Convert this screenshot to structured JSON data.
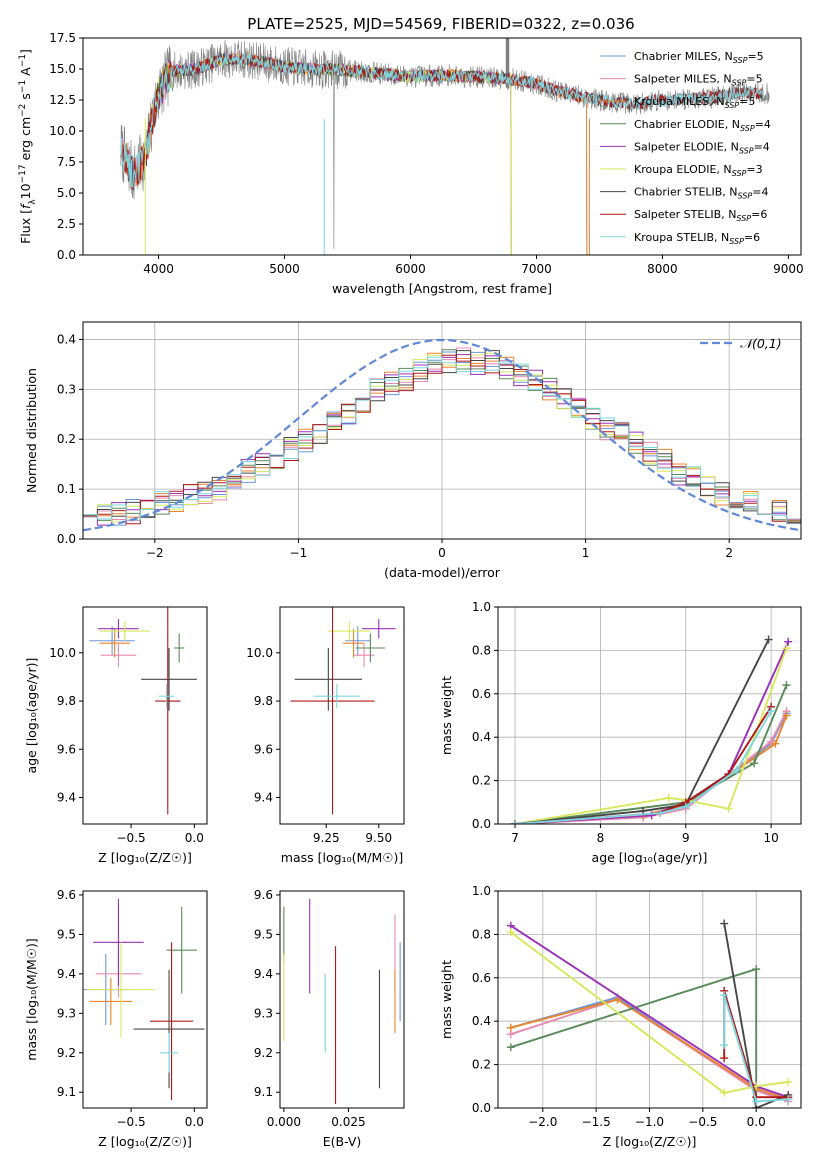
{
  "figure_title": "PLATE=2525, MJD=54569, FIBERID=0322, z=0.036",
  "colors": {
    "Chabrier MILES": "#6f96d8",
    "Salpeter MILES": "#e889b0",
    "Kroupa MILES": "#e8862d",
    "Chabrier ELODIE": "#5a8a5a",
    "Salpeter ELODIE": "#9b30b8",
    "Kroupa ELODIE": "#d7e85a",
    "Chabrier STELIB": "#474747",
    "Salpeter STELIB": "#b01818",
    "Kroupa STELIB": "#7fd6e0",
    "observed": "#808080",
    "normal": "#5f88d6"
  },
  "chart_data": [
    {
      "id": "spectrum",
      "type": "line",
      "xlabel": "wavelength [Angstrom, rest frame]",
      "ylabel_prefix": "Flux [",
      "ylabel_units": "f",
      "ylabel_sub": "λ",
      "ylabel_mid": "10",
      "ylabel_exp1": "−17",
      "ylabel_mid2": " erg cm",
      "ylabel_exp2": "−2",
      "ylabel_mid3": " s",
      "ylabel_exp3": "−1",
      "ylabel_mid4": " A",
      "ylabel_exp4": "−1",
      "ylabel_end": "]",
      "xlim": [
        3400,
        9100
      ],
      "ylim": [
        0,
        17.5
      ],
      "xticks": [
        4000,
        5000,
        6000,
        7000,
        8000,
        9000
      ],
      "yticks": [
        0.0,
        2.5,
        5.0,
        7.5,
        10.0,
        12.5,
        15.0,
        17.5
      ],
      "continuum": [
        [
          3700,
          8.5
        ],
        [
          3800,
          6.5
        ],
        [
          3900,
          8.0
        ],
        [
          3950,
          11.0
        ],
        [
          4000,
          13.0
        ],
        [
          4100,
          14.8
        ],
        [
          4300,
          15.0
        ],
        [
          4500,
          15.8
        ],
        [
          4700,
          15.8
        ],
        [
          5000,
          15.2
        ],
        [
          5200,
          15.0
        ],
        [
          5500,
          14.9
        ],
        [
          6000,
          14.4
        ],
        [
          6300,
          14.5
        ],
        [
          6600,
          14.3
        ],
        [
          6800,
          14.2
        ],
        [
          7000,
          13.8
        ],
        [
          7200,
          13.1
        ],
        [
          7400,
          12.7
        ],
        [
          7600,
          12.3
        ],
        [
          7800,
          12.2
        ],
        [
          8000,
          12.5
        ],
        [
          8200,
          12.6
        ],
        [
          8400,
          12.7
        ],
        [
          8600,
          13.1
        ],
        [
          8800,
          13.0
        ]
      ],
      "series": [
        {
          "name": "Chabrier MILES",
          "nssp": "5",
          "range": [
            3700,
            7400
          ]
        },
        {
          "name": "Salpeter MILES",
          "nssp": "5",
          "range": [
            3700,
            7400
          ]
        },
        {
          "name": "Kroupa MILES",
          "nssp": "5",
          "range": [
            3700,
            7400
          ]
        },
        {
          "name": "Chabrier ELODIE",
          "nssp": "4",
          "range": [
            4000,
            6800
          ]
        },
        {
          "name": "Salpeter ELODIE",
          "nssp": "4",
          "range": [
            4000,
            6800
          ]
        },
        {
          "name": "Kroupa ELODIE",
          "nssp": "3",
          "range": [
            3900,
            6800
          ]
        },
        {
          "name": "Chabrier STELIB",
          "nssp": "4",
          "range": [
            3700,
            8800
          ]
        },
        {
          "name": "Salpeter STELIB",
          "nssp": "6",
          "range": [
            3700,
            8800
          ]
        },
        {
          "name": "Kroupa STELIB",
          "nssp": "6",
          "range": [
            3700,
            8800
          ]
        }
      ],
      "legend_placement": "upper right"
    },
    {
      "id": "residuals",
      "type": "histogram",
      "xlabel": "(data-model)/error",
      "ylabel": "Normed distribution",
      "xlim": [
        -2.5,
        2.5
      ],
      "ylim": [
        0,
        0.435
      ],
      "xticks": [
        -2,
        -1,
        0,
        1,
        2
      ],
      "yticks": [
        0.0,
        0.1,
        0.2,
        0.3,
        0.4
      ],
      "bins": 50,
      "mean_values": [
        0.04,
        0.045,
        0.05,
        0.055,
        0.06,
        0.07,
        0.08,
        0.085,
        0.09,
        0.1,
        0.12,
        0.135,
        0.15,
        0.165,
        0.18,
        0.2,
        0.215,
        0.23,
        0.25,
        0.27,
        0.3,
        0.31,
        0.32,
        0.34,
        0.35,
        0.355,
        0.36,
        0.35,
        0.355,
        0.34,
        0.33,
        0.32,
        0.3,
        0.28,
        0.26,
        0.24,
        0.22,
        0.21,
        0.19,
        0.17,
        0.16,
        0.13,
        0.12,
        0.1,
        0.09,
        0.08,
        0.07,
        0.065,
        0.06,
        0.055
      ],
      "legend_label": "𝒩(0,1)",
      "legend_placement": "upper right",
      "grid": true
    },
    {
      "id": "age_vs_Z",
      "type": "errorbar",
      "xlabel": "Z [log₁₀(Z/Z☉)]",
      "ylabel": "age  [log₁₀(age/yr)]",
      "xlim": [
        -0.88,
        0.1
      ],
      "ylim": [
        9.29,
        10.19
      ],
      "xticks": [
        -0.5,
        0.0
      ],
      "xticklabels": [
        "−0.5",
        "0.0"
      ],
      "yticks": [
        9.4,
        9.6,
        9.8,
        10.0
      ],
      "points": [
        {
          "series": "Chabrier MILES",
          "x": -0.65,
          "xerr": 0.18,
          "y": 10.05,
          "yerr": 0.06
        },
        {
          "series": "Salpeter MILES",
          "x": -0.6,
          "xerr": 0.14,
          "y": 9.99,
          "yerr": 0.05
        },
        {
          "series": "Kroupa MILES",
          "x": -0.63,
          "xerr": 0.12,
          "y": 10.04,
          "yerr": 0.06
        },
        {
          "series": "Chabrier ELODIE",
          "x": -0.12,
          "xerr": 0.04,
          "y": 10.02,
          "yerr": 0.06
        },
        {
          "series": "Salpeter ELODIE",
          "x": -0.6,
          "xerr": 0.16,
          "y": 10.1,
          "yerr": 0.04
        },
        {
          "series": "Kroupa ELODIE",
          "x": -0.55,
          "xerr": 0.2,
          "y": 10.09,
          "yerr": 0.04
        },
        {
          "series": "Chabrier STELIB",
          "x": -0.2,
          "xerr": 0.22,
          "y": 9.89,
          "yerr": 0.13
        },
        {
          "series": "Salpeter STELIB",
          "x": -0.21,
          "xerr": 0.1,
          "y": 9.8,
          "yerr": 0.47
        },
        {
          "series": "Kroupa STELIB",
          "x": -0.22,
          "xerr": 0.06,
          "y": 9.82,
          "yerr": 0.05
        }
      ]
    },
    {
      "id": "age_vs_mass",
      "type": "errorbar",
      "xlabel": "mass [log₁₀(M/M☉)]",
      "ylabel": "",
      "xlim": [
        9.03,
        9.62
      ],
      "ylim": [
        9.29,
        10.19
      ],
      "xticks": [
        9.25,
        9.5
      ],
      "xticklabels": [
        "9.25",
        "9.50"
      ],
      "yticks": [
        9.4,
        9.6,
        9.8,
        10.0
      ],
      "points": [
        {
          "series": "Chabrier MILES",
          "x": 9.4,
          "xerr": 0.06,
          "y": 10.05,
          "yerr": 0.06
        },
        {
          "series": "Salpeter MILES",
          "x": 9.43,
          "xerr": 0.05,
          "y": 9.99,
          "yerr": 0.05
        },
        {
          "series": "Kroupa MILES",
          "x": 9.38,
          "xerr": 0.05,
          "y": 10.04,
          "yerr": 0.06
        },
        {
          "series": "Chabrier ELODIE",
          "x": 9.46,
          "xerr": 0.07,
          "y": 10.02,
          "yerr": 0.06
        },
        {
          "series": "Salpeter ELODIE",
          "x": 9.5,
          "xerr": 0.08,
          "y": 10.1,
          "yerr": 0.04
        },
        {
          "series": "Kroupa ELODIE",
          "x": 9.36,
          "xerr": 0.1,
          "y": 10.09,
          "yerr": 0.04
        },
        {
          "series": "Chabrier STELIB",
          "x": 9.26,
          "xerr": 0.16,
          "y": 9.89,
          "yerr": 0.13
        },
        {
          "series": "Salpeter STELIB",
          "x": 9.28,
          "xerr": 0.2,
          "y": 9.8,
          "yerr": 0.47
        },
        {
          "series": "Kroupa STELIB",
          "x": 9.3,
          "xerr": 0.11,
          "y": 9.82,
          "yerr": 0.05
        }
      ]
    },
    {
      "id": "weight_vs_age",
      "type": "line",
      "xlabel": "age  [log₁₀(age/yr)]",
      "ylabel": "mass weight",
      "xlim": [
        6.8,
        10.35
      ],
      "ylim": [
        0,
        1
      ],
      "xticks": [
        7,
        8,
        9,
        10
      ],
      "yticks": [
        0.0,
        0.2,
        0.4,
        0.6,
        0.8,
        1.0
      ],
      "grid": true,
      "series": [
        {
          "name": "Chabrier MILES",
          "x": [
            7.0,
            8.5,
            9.0,
            10.0,
            10.18
          ],
          "y": [
            0.0,
            0.04,
            0.08,
            0.37,
            0.51
          ]
        },
        {
          "name": "Salpeter MILES",
          "x": [
            7.0,
            8.5,
            9.0,
            10.0,
            10.18
          ],
          "y": [
            0.0,
            0.03,
            0.07,
            0.38,
            0.52
          ]
        },
        {
          "name": "Kroupa MILES",
          "x": [
            7.0,
            8.5,
            9.0,
            10.05,
            10.18
          ],
          "y": [
            0.0,
            0.04,
            0.09,
            0.37,
            0.5
          ]
        },
        {
          "name": "Chabrier ELODIE",
          "x": [
            7.0,
            9.0,
            9.8,
            10.18
          ],
          "y": [
            0.0,
            0.1,
            0.28,
            0.64
          ]
        },
        {
          "name": "Salpeter ELODIE",
          "x": [
            7.0,
            8.6,
            9.0,
            9.5,
            10.2
          ],
          "y": [
            0.0,
            0.04,
            0.1,
            0.23,
            0.84
          ]
        },
        {
          "name": "Kroupa ELODIE",
          "x": [
            7.0,
            8.8,
            9.0,
            9.5,
            10.18
          ],
          "y": [
            0.0,
            0.12,
            0.11,
            0.07,
            0.81
          ]
        },
        {
          "name": "Chabrier STELIB",
          "x": [
            7.0,
            8.5,
            9.0,
            9.97
          ],
          "y": [
            0.0,
            0.06,
            0.09,
            0.85
          ]
        },
        {
          "name": "Salpeter STELIB",
          "x": [
            7.0,
            8.7,
            9.0,
            9.5,
            10.0
          ],
          "y": [
            0.0,
            0.05,
            0.1,
            0.23,
            0.54
          ]
        },
        {
          "name": "Kroupa STELIB",
          "x": [
            7.0,
            8.7,
            9.0,
            9.6,
            10.0
          ],
          "y": [
            0.0,
            0.05,
            0.08,
            0.25,
            0.52
          ]
        }
      ]
    },
    {
      "id": "mass_vs_Z",
      "type": "errorbar",
      "xlabel": "Z [log₁₀(Z/Z☉)]",
      "ylabel": "mass [log₁₀(M/M☉)]",
      "xlim": [
        -0.88,
        0.1
      ],
      "ylim": [
        9.06,
        9.61
      ],
      "xticks": [
        -0.5,
        0.0
      ],
      "xticklabels": [
        "−0.5",
        "0.0"
      ],
      "yticks": [
        9.1,
        9.2,
        9.3,
        9.4,
        9.5,
        9.6
      ],
      "points": [
        {
          "series": "Chabrier MILES",
          "x": -0.7,
          "xerr": 0.18,
          "y": 9.36,
          "yerr": 0.09
        },
        {
          "series": "Salpeter MILES",
          "x": -0.6,
          "xerr": 0.18,
          "y": 9.4,
          "yerr": 0.06
        },
        {
          "series": "Kroupa MILES",
          "x": -0.66,
          "xerr": 0.17,
          "y": 9.33,
          "yerr": 0.06
        },
        {
          "series": "Chabrier ELODIE",
          "x": -0.1,
          "xerr": 0.12,
          "y": 9.46,
          "yerr": 0.11
        },
        {
          "series": "Salpeter ELODIE",
          "x": -0.6,
          "xerr": 0.2,
          "y": 9.48,
          "yerr": 0.11
        },
        {
          "series": "Kroupa ELODIE",
          "x": -0.58,
          "xerr": 0.27,
          "y": 9.36,
          "yerr": 0.12
        },
        {
          "series": "Chabrier STELIB",
          "x": -0.2,
          "xerr": 0.28,
          "y": 9.26,
          "yerr": 0.15
        },
        {
          "series": "Salpeter STELIB",
          "x": -0.18,
          "xerr": 0.17,
          "y": 9.28,
          "yerr": 0.2
        },
        {
          "series": "Kroupa STELIB",
          "x": -0.2,
          "xerr": 0.07,
          "y": 9.2,
          "yerr": 0.05
        }
      ]
    },
    {
      "id": "mass_vs_ebv",
      "type": "errorbar",
      "xlabel": "E(B-V)",
      "ylabel": "",
      "xlim": [
        -0.0015,
        0.0465
      ],
      "ylim": [
        9.06,
        9.61
      ],
      "xticks": [
        0.0,
        0.025
      ],
      "xticklabels": [
        "0.000",
        "0.025"
      ],
      "yticks": [
        9.1,
        9.2,
        9.3,
        9.4,
        9.5,
        9.6
      ],
      "points": [
        {
          "series": "Chabrier MILES",
          "x": 0.045,
          "xerr": 0,
          "y": 9.38,
          "yerr": 0.1
        },
        {
          "series": "Salpeter MILES",
          "x": 0.043,
          "xerr": 0,
          "y": 9.45,
          "yerr": 0.1
        },
        {
          "series": "Kroupa MILES",
          "x": 0.043,
          "xerr": 0,
          "y": 9.33,
          "yerr": 0.08
        },
        {
          "series": "Chabrier ELODIE",
          "x": 0.0,
          "xerr": 0,
          "y": 9.5,
          "yerr": 0.07
        },
        {
          "series": "Salpeter ELODIE",
          "x": 0.01,
          "xerr": 0,
          "y": 9.47,
          "yerr": 0.12
        },
        {
          "series": "Kroupa ELODIE",
          "x": 0.0,
          "xerr": 0,
          "y": 9.34,
          "yerr": 0.11
        },
        {
          "series": "Chabrier STELIB",
          "x": 0.037,
          "xerr": 0,
          "y": 9.26,
          "yerr": 0.15
        },
        {
          "series": "Salpeter STELIB",
          "x": 0.02,
          "xerr": 0,
          "y": 9.27,
          "yerr": 0.2
        },
        {
          "series": "Kroupa STELIB",
          "x": 0.016,
          "xerr": 0,
          "y": 9.3,
          "yerr": 0.1
        }
      ]
    },
    {
      "id": "weight_vs_Z",
      "type": "line",
      "xlabel": "Z [log₁₀(Z/Z☉)]",
      "ylabel": "mass weight",
      "xlim": [
        -2.42,
        0.42
      ],
      "ylim": [
        0,
        1
      ],
      "xticks": [
        -2.0,
        -1.5,
        -1.0,
        -0.5,
        0.0
      ],
      "xticklabels": [
        "−2.0",
        "−1.5",
        "−1.0",
        "−0.5",
        "0.0"
      ],
      "yticks": [
        0.0,
        0.2,
        0.4,
        0.6,
        0.8,
        1.0
      ],
      "grid": true,
      "series": [
        {
          "name": "Chabrier MILES",
          "x": [
            -2.3,
            -1.3,
            0.0,
            0.3
          ],
          "y": [
            0.37,
            0.51,
            0.08,
            0.04
          ]
        },
        {
          "name": "Salpeter MILES",
          "x": [
            -2.3,
            -1.3,
            0.0,
            0.3
          ],
          "y": [
            0.34,
            0.5,
            0.08,
            0.03
          ]
        },
        {
          "name": "Kroupa MILES",
          "x": [
            -2.3,
            -1.3,
            0.0,
            0.3
          ],
          "y": [
            0.37,
            0.5,
            0.09,
            0.04
          ]
        },
        {
          "name": "Chabrier ELODIE",
          "x": [
            -2.3,
            0.0,
            0.0
          ],
          "y": [
            0.28,
            0.64,
            0.0
          ]
        },
        {
          "name": "Salpeter ELODIE",
          "x": [
            -2.3,
            0.0,
            0.3
          ],
          "y": [
            0.84,
            0.1,
            0.05
          ]
        },
        {
          "name": "Kroupa ELODIE",
          "x": [
            -2.3,
            -0.3,
            0.0,
            0.3
          ],
          "y": [
            0.81,
            0.07,
            0.1,
            0.12
          ]
        },
        {
          "name": "Chabrier STELIB",
          "x": [
            -0.3,
            0.0,
            0.3
          ],
          "y": [
            0.85,
            0.0,
            0.06
          ]
        },
        {
          "name": "Salpeter STELIB",
          "x": [
            -0.3,
            -0.3,
            0.0,
            0.3
          ],
          "y": [
            0.23,
            0.54,
            0.05,
            0.05
          ]
        },
        {
          "name": "Kroupa STELIB",
          "x": [
            -0.3,
            -0.3,
            0.0,
            0.3
          ],
          "y": [
            0.29,
            0.52,
            0.03,
            0.04
          ]
        }
      ]
    }
  ]
}
